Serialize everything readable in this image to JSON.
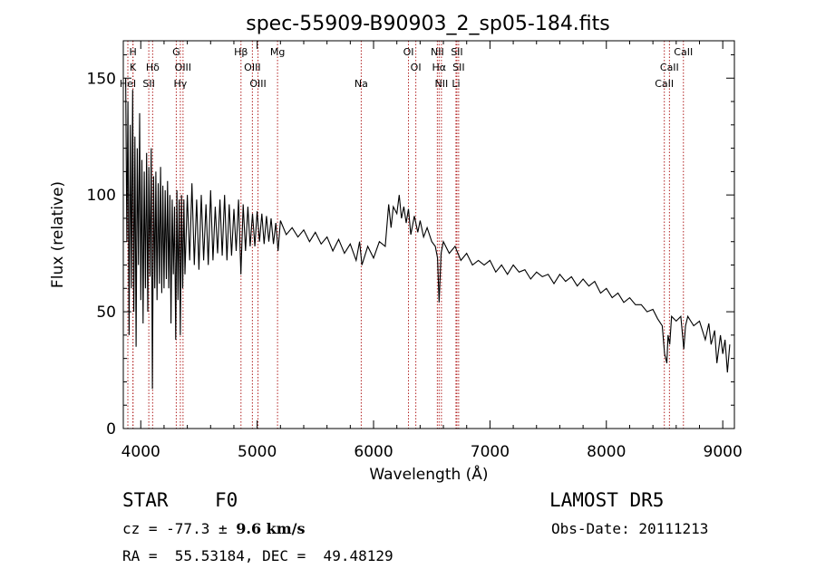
{
  "chart_data": {
    "type": "line",
    "title": "spec-55909-B90903_2_sp05-184.fits",
    "xlabel": "Wavelength (Å)",
    "ylabel": "Flux (relative)",
    "xlim": [
      3850,
      9100
    ],
    "ylim": [
      0,
      166
    ],
    "xticks": [
      {
        "value": 4000,
        "label": "4000"
      },
      {
        "value": 5000,
        "label": "5000"
      },
      {
        "value": 6000,
        "label": "6000"
      },
      {
        "value": 7000,
        "label": "7000"
      },
      {
        "value": 8000,
        "label": "8000"
      },
      {
        "value": 9000,
        "label": "9000"
      }
    ],
    "yticks": [
      {
        "value": 0,
        "label": "0"
      },
      {
        "value": 50,
        "label": "50"
      },
      {
        "value": 100,
        "label": "100"
      },
      {
        "value": 150,
        "label": "150"
      }
    ],
    "grid": false,
    "series": [
      {
        "color": "#000000",
        "points": [
          [
            3870,
            150
          ],
          [
            3880,
            80
          ],
          [
            3890,
            140
          ],
          [
            3900,
            40
          ],
          [
            3910,
            130
          ],
          [
            3920,
            60
          ],
          [
            3930,
            145
          ],
          [
            3940,
            50
          ],
          [
            3950,
            125
          ],
          [
            3960,
            35
          ],
          [
            3970,
            120
          ],
          [
            3980,
            70
          ],
          [
            3990,
            135
          ],
          [
            4000,
            55
          ],
          [
            4010,
            115
          ],
          [
            4020,
            45
          ],
          [
            4030,
            110
          ],
          [
            4040,
            60
          ],
          [
            4050,
            118
          ],
          [
            4060,
            50
          ],
          [
            4070,
            112
          ],
          [
            4080,
            65
          ],
          [
            4090,
            120
          ],
          [
            4100,
            17
          ],
          [
            4110,
            108
          ],
          [
            4120,
            60
          ],
          [
            4130,
            110
          ],
          [
            4140,
            55
          ],
          [
            4150,
            105
          ],
          [
            4160,
            62
          ],
          [
            4170,
            112
          ],
          [
            4180,
            58
          ],
          [
            4190,
            104
          ],
          [
            4200,
            60
          ],
          [
            4210,
            102
          ],
          [
            4220,
            64
          ],
          [
            4230,
            106
          ],
          [
            4240,
            60
          ],
          [
            4250,
            100
          ],
          [
            4260,
            45
          ],
          [
            4270,
            98
          ],
          [
            4280,
            66
          ],
          [
            4290,
            95
          ],
          [
            4300,
            38
          ],
          [
            4310,
            102
          ],
          [
            4320,
            55
          ],
          [
            4330,
            98
          ],
          [
            4340,
            40
          ],
          [
            4350,
            100
          ],
          [
            4360,
            60
          ],
          [
            4370,
            98
          ],
          [
            4380,
            66
          ],
          [
            4400,
            100
          ],
          [
            4420,
            72
          ],
          [
            4440,
            105
          ],
          [
            4460,
            70
          ],
          [
            4480,
            98
          ],
          [
            4500,
            68
          ],
          [
            4520,
            100
          ],
          [
            4540,
            72
          ],
          [
            4560,
            96
          ],
          [
            4580,
            70
          ],
          [
            4600,
            102
          ],
          [
            4620,
            72
          ],
          [
            4640,
            95
          ],
          [
            4660,
            75
          ],
          [
            4680,
            98
          ],
          [
            4700,
            74
          ],
          [
            4720,
            100
          ],
          [
            4740,
            72
          ],
          [
            4760,
            96
          ],
          [
            4780,
            74
          ],
          [
            4800,
            94
          ],
          [
            4820,
            76
          ],
          [
            4840,
            98
          ],
          [
            4860,
            66
          ],
          [
            4880,
            96
          ],
          [
            4900,
            76
          ],
          [
            4920,
            95
          ],
          [
            4940,
            78
          ],
          [
            4960,
            92
          ],
          [
            4980,
            78
          ],
          [
            5000,
            93
          ],
          [
            5020,
            80
          ],
          [
            5040,
            92
          ],
          [
            5060,
            79
          ],
          [
            5080,
            91
          ],
          [
            5100,
            80
          ],
          [
            5120,
            90
          ],
          [
            5140,
            79
          ],
          [
            5160,
            88
          ],
          [
            5180,
            76
          ],
          [
            5200,
            89
          ],
          [
            5250,
            83
          ],
          [
            5300,
            86
          ],
          [
            5350,
            82
          ],
          [
            5400,
            85
          ],
          [
            5450,
            80
          ],
          [
            5500,
            84
          ],
          [
            5550,
            79
          ],
          [
            5600,
            82
          ],
          [
            5650,
            76
          ],
          [
            5700,
            81
          ],
          [
            5750,
            75
          ],
          [
            5800,
            79
          ],
          [
            5850,
            72
          ],
          [
            5880,
            80
          ],
          [
            5900,
            70
          ],
          [
            5950,
            78
          ],
          [
            6000,
            73
          ],
          [
            6050,
            80
          ],
          [
            6100,
            78
          ],
          [
            6130,
            96
          ],
          [
            6150,
            86
          ],
          [
            6170,
            95
          ],
          [
            6200,
            92
          ],
          [
            6220,
            100
          ],
          [
            6240,
            90
          ],
          [
            6260,
            95
          ],
          [
            6280,
            88
          ],
          [
            6300,
            94
          ],
          [
            6320,
            83
          ],
          [
            6350,
            91
          ],
          [
            6380,
            84
          ],
          [
            6400,
            89
          ],
          [
            6430,
            82
          ],
          [
            6460,
            86
          ],
          [
            6500,
            80
          ],
          [
            6530,
            78
          ],
          [
            6550,
            73
          ],
          [
            6563,
            54
          ],
          [
            6580,
            75
          ],
          [
            6600,
            80
          ],
          [
            6650,
            75
          ],
          [
            6700,
            78
          ],
          [
            6750,
            72
          ],
          [
            6800,
            75
          ],
          [
            6850,
            70
          ],
          [
            6900,
            72
          ],
          [
            6950,
            70
          ],
          [
            7000,
            72
          ],
          [
            7050,
            67
          ],
          [
            7100,
            70
          ],
          [
            7150,
            66
          ],
          [
            7200,
            70
          ],
          [
            7250,
            67
          ],
          [
            7300,
            68
          ],
          [
            7350,
            64
          ],
          [
            7400,
            67
          ],
          [
            7450,
            65
          ],
          [
            7500,
            66
          ],
          [
            7550,
            62
          ],
          [
            7600,
            66
          ],
          [
            7650,
            63
          ],
          [
            7700,
            65
          ],
          [
            7750,
            61
          ],
          [
            7800,
            64
          ],
          [
            7850,
            61
          ],
          [
            7900,
            63
          ],
          [
            7950,
            58
          ],
          [
            8000,
            60
          ],
          [
            8050,
            56
          ],
          [
            8100,
            58
          ],
          [
            8150,
            54
          ],
          [
            8200,
            56
          ],
          [
            8250,
            53
          ],
          [
            8300,
            53
          ],
          [
            8350,
            50
          ],
          [
            8400,
            51
          ],
          [
            8440,
            47
          ],
          [
            8480,
            44
          ],
          [
            8500,
            32
          ],
          [
            8520,
            28
          ],
          [
            8530,
            40
          ],
          [
            8545,
            36
          ],
          [
            8560,
            48
          ],
          [
            8600,
            46
          ],
          [
            8640,
            48
          ],
          [
            8665,
            34
          ],
          [
            8680,
            44
          ],
          [
            8700,
            48
          ],
          [
            8750,
            44
          ],
          [
            8800,
            46
          ],
          [
            8850,
            38
          ],
          [
            8880,
            45
          ],
          [
            8900,
            36
          ],
          [
            8930,
            42
          ],
          [
            8950,
            28
          ],
          [
            8980,
            40
          ],
          [
            9000,
            32
          ],
          [
            9020,
            38
          ],
          [
            9040,
            24
          ],
          [
            9060,
            36
          ]
        ]
      }
    ],
    "emission_lines": [
      {
        "label": "H",
        "wavelength": 3933,
        "row": 0
      },
      {
        "label": "K",
        "wavelength": 3933,
        "row": 1
      },
      {
        "label": "HeI",
        "wavelength": 3889,
        "row": 2
      },
      {
        "label": "SII",
        "wavelength": 4069,
        "row": 2
      },
      {
        "label": "Hδ",
        "wavelength": 4102,
        "row": 1
      },
      {
        "label": "G",
        "wavelength": 4305,
        "row": 0
      },
      {
        "label": "OIII",
        "wavelength": 4363,
        "row": 1
      },
      {
        "label": "Hγ",
        "wavelength": 4340,
        "row": 2
      },
      {
        "label": "Hβ",
        "wavelength": 4861,
        "row": 0
      },
      {
        "label": "OIII",
        "wavelength": 4959,
        "row": 1
      },
      {
        "label": "OIII",
        "wavelength": 5007,
        "row": 2
      },
      {
        "label": "Mg",
        "wavelength": 5175,
        "row": 0
      },
      {
        "label": "Na",
        "wavelength": 5894,
        "row": 2
      },
      {
        "label": "OI",
        "wavelength": 6300,
        "row": 0
      },
      {
        "label": "OI",
        "wavelength": 6363,
        "row": 1
      },
      {
        "label": "NII",
        "wavelength": 6548,
        "row": 0
      },
      {
        "label": "Hα",
        "wavelength": 6563,
        "row": 1
      },
      {
        "label": "NII",
        "wavelength": 6583,
        "row": 2
      },
      {
        "label": "SII",
        "wavelength": 6716,
        "row": 0
      },
      {
        "label": "SII",
        "wavelength": 6731,
        "row": 1
      },
      {
        "label": "Li",
        "wavelength": 6708,
        "row": 2
      },
      {
        "label": "CaII",
        "wavelength": 8662,
        "row": 0
      },
      {
        "label": "CaII",
        "wavelength": 8542,
        "row": 1
      },
      {
        "label": "CaII",
        "wavelength": 8498,
        "row": 2
      }
    ],
    "line_marker_color": "#b22222"
  },
  "info": {
    "object_class": "STAR",
    "subclass": "F0",
    "survey": "LAMOST DR5",
    "cz_prefix": "cz = -77.3 ± ",
    "cz_error": "9.6 km/s",
    "obs_date": "Obs-Date: 20111213",
    "radec": "RA =  55.53184, DEC =  49.48129"
  }
}
